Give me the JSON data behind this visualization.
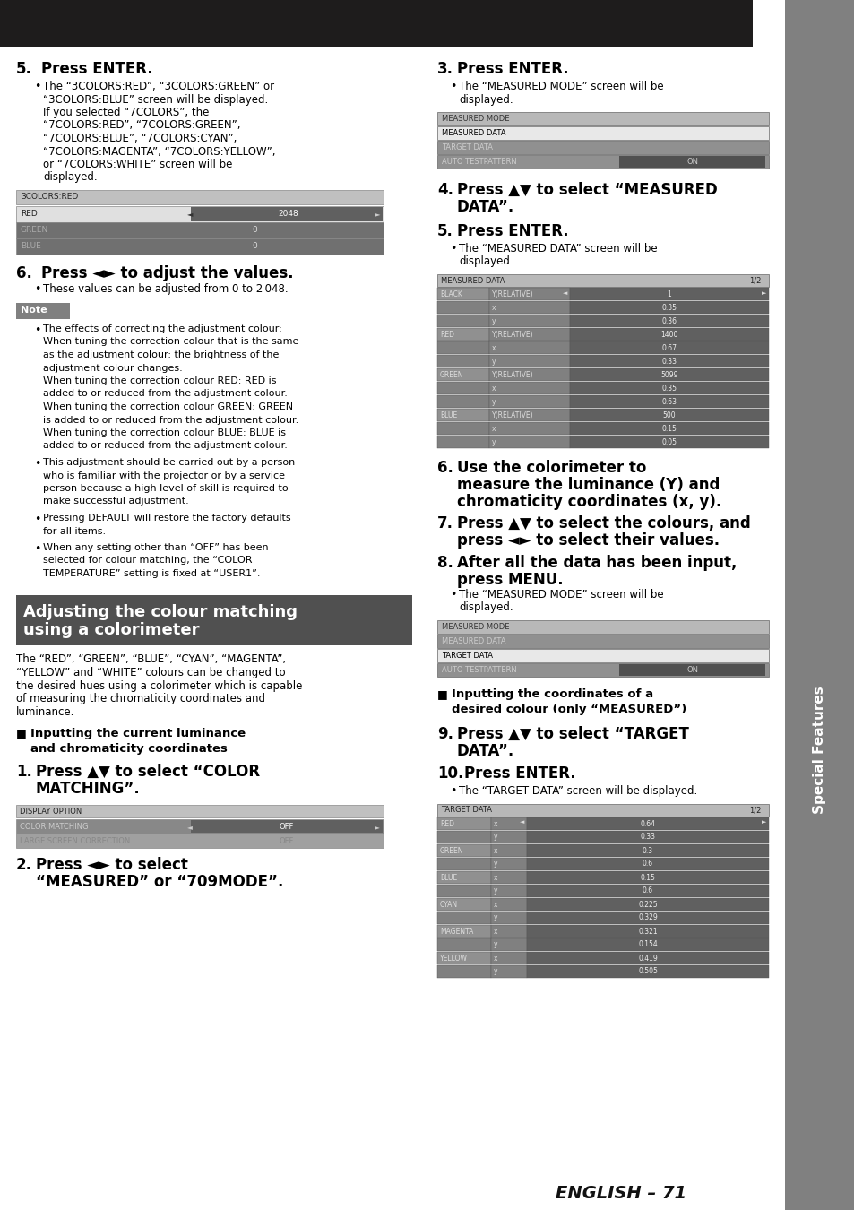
{
  "page_bg": "#ffffff",
  "header_bg": "#1e1c1c",
  "sidebar_bg": "#808080",
  "sidebar_text": "Special Features",
  "sidebar_text_color": "#ffffff",
  "footer_text": "ENGLISH – 71",
  "measured_mode_rows": [
    {
      "label": "MEASURED MODE",
      "bg": "#b8b8b8",
      "text_color": "#333333",
      "value": null
    },
    {
      "label": "MEASURED DATA",
      "bg": "#e8e8e8",
      "text_color": "#000000",
      "value": null
    },
    {
      "label": "TARGET DATA",
      "bg": "#909090",
      "text_color": "#cccccc",
      "value": null
    },
    {
      "label": "AUTO TESTPATTERN",
      "bg": "#909090",
      "text_color": "#cccccc",
      "value": "ON"
    }
  ],
  "measured_mode_rows2": [
    {
      "label": "MEASURED MODE",
      "bg": "#b8b8b8",
      "text_color": "#333333",
      "value": null
    },
    {
      "label": "MEASURED DATA",
      "bg": "#909090",
      "text_color": "#cccccc",
      "value": null
    },
    {
      "label": "TARGET DATA",
      "bg": "#e8e8e8",
      "text_color": "#000000",
      "value": null
    },
    {
      "label": "AUTO TESTPATTERN",
      "bg": "#909090",
      "text_color": "#cccccc",
      "value": "ON"
    }
  ],
  "display_option_rows": [
    {
      "label": "DISPLAY OPTION",
      "bg": "#b8b8b8",
      "text_color": "#333333"
    },
    {
      "label": "COLOR MATCHING",
      "bg": "#909090",
      "text_color": "#cccccc",
      "value": "OFF",
      "active": true
    },
    {
      "label": "LARGE SCREEN CORRECTION",
      "bg": "#a0a0a0",
      "text_color": "#888888",
      "value": "OFF",
      "active": false
    }
  ],
  "colors_red_rows": [
    {
      "label": "3COLORS:RED",
      "bg": "#b8b8b8",
      "text_color": "#333333",
      "value": null
    },
    {
      "label": "RED",
      "bg": "#e0e0e0",
      "text_color": "#333333",
      "value": "2048",
      "active": true
    },
    {
      "label": "GREEN",
      "bg": "#707070",
      "text_color": "#aaaaaa",
      "value": "0"
    },
    {
      "label": "BLUE",
      "bg": "#707070",
      "text_color": "#aaaaaa",
      "value": "0"
    }
  ],
  "measured_data_rows": [
    {
      "color_label": "BLACK",
      "field": "Y(RELATIVE)",
      "value": "1",
      "active": true
    },
    {
      "color_label": "",
      "field": "x",
      "value": "0.35"
    },
    {
      "color_label": "",
      "field": "y",
      "value": "0.36"
    },
    {
      "color_label": "RED",
      "field": "Y(RELATIVE)",
      "value": "1400"
    },
    {
      "color_label": "",
      "field": "x",
      "value": "0.67"
    },
    {
      "color_label": "",
      "field": "y",
      "value": "0.33"
    },
    {
      "color_label": "GREEN",
      "field": "Y(RELATIVE)",
      "value": "5099"
    },
    {
      "color_label": "",
      "field": "x",
      "value": "0.35"
    },
    {
      "color_label": "",
      "field": "y",
      "value": "0.63"
    },
    {
      "color_label": "BLUE",
      "field": "Y(RELATIVE)",
      "value": "500"
    },
    {
      "color_label": "",
      "field": "x",
      "value": "0.15"
    },
    {
      "color_label": "",
      "field": "y",
      "value": "0.05"
    }
  ],
  "target_data_rows": [
    {
      "color_label": "RED",
      "field": "x",
      "value": "0.64",
      "active": true
    },
    {
      "color_label": "",
      "field": "y",
      "value": "0.33"
    },
    {
      "color_label": "GREEN",
      "field": "x",
      "value": "0.3"
    },
    {
      "color_label": "",
      "field": "y",
      "value": "0.6"
    },
    {
      "color_label": "BLUE",
      "field": "x",
      "value": "0.15"
    },
    {
      "color_label": "",
      "field": "y",
      "value": "0.6"
    },
    {
      "color_label": "CYAN",
      "field": "x",
      "value": "0.225"
    },
    {
      "color_label": "",
      "field": "y",
      "value": "0.329"
    },
    {
      "color_label": "MAGENTA",
      "field": "x",
      "value": "0.321"
    },
    {
      "color_label": "",
      "field": "y",
      "value": "0.154"
    },
    {
      "color_label": "YELLOW",
      "field": "x",
      "value": "0.419"
    },
    {
      "color_label": "",
      "field": "y",
      "value": "0.505"
    }
  ]
}
